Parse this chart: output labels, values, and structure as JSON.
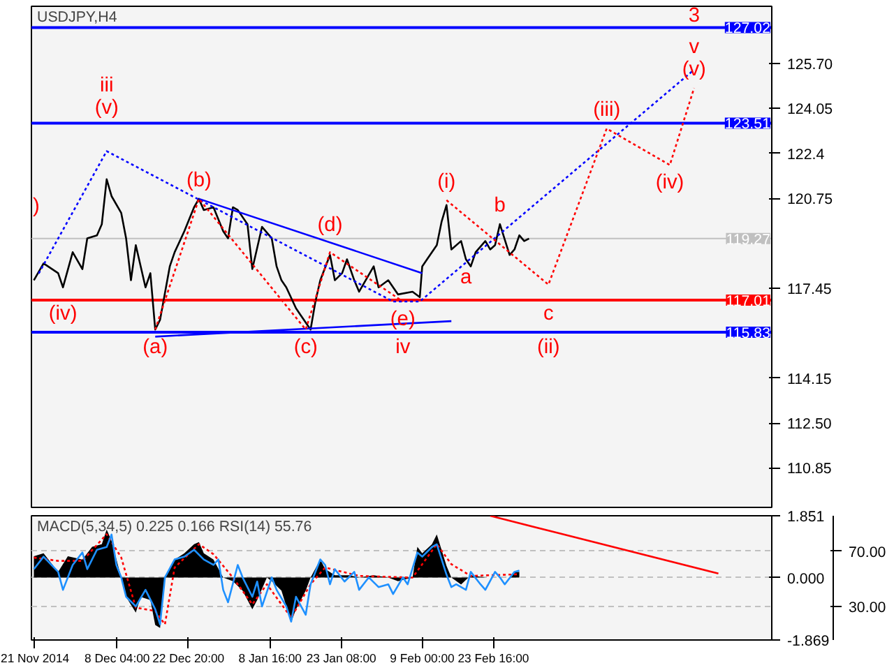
{
  "chart_data": [
    {
      "type": "line",
      "title": "USDJPY,H4",
      "xlim": [
        "2014-11-20T12:00",
        "2015-04-22"
      ],
      "ylim": [
        109.4,
        127.8
      ],
      "tick_labels": "y",
      "grid": false,
      "marker": "none",
      "yticks": [
        110.85,
        {
          "value": 112.5,
          "label": "112.50"
        },
        114.15,
        117.45,
        120.75,
        122.4,
        124.05,
        {
          "value": 125.7,
          "label": "125.70"
        }
      ],
      "series": [
        {
          "color": "#000000",
          "x": [
            "2014-11-21",
            "2014-11-23",
            "2014-11-26",
            "2014-11-27",
            "2014-11-29",
            "2014-12-01",
            "2014-12-02",
            "2014-12-04",
            "2014-12-05",
            "2014-12-06",
            "2014-12-07",
            "2014-12-09",
            "2014-12-10",
            "2014-12-11",
            "2014-12-12",
            "2014-12-14",
            "2014-12-15",
            "2014-12-16",
            "2014-12-17",
            "2014-12-19",
            "2014-12-20",
            "2014-12-22",
            "2014-12-24",
            "2014-12-25",
            "2014-12-26",
            "2014-12-28",
            "2014-12-30",
            "2014-12-31",
            "2015-01-01",
            "2015-01-02",
            "2015-01-04",
            "2015-01-05",
            "2015-01-07",
            "2015-01-09",
            "2015-01-10",
            "2015-01-11",
            "2015-01-12",
            "2015-01-14",
            "2015-01-15",
            "2015-01-17",
            "2015-01-18",
            "2015-01-19",
            "2015-01-21",
            "2015-01-22",
            "2015-01-23T12:00",
            "2015-01-24T12:00",
            "2015-01-26",
            "2015-01-27",
            "2015-01-30",
            "2015-01-31",
            "2015-02-02",
            "2015-02-04",
            "2015-02-07",
            "2015-02-08T12:00",
            "2015-02-09",
            "2015-02-10",
            "2015-02-12",
            "2015-02-13",
            "2015-02-14",
            "2015-02-15",
            "2015-02-17",
            "2015-02-18",
            "2015-02-19",
            "2015-02-20",
            "2015-02-22",
            "2015-02-23",
            "2015-02-24",
            "2015-02-25",
            "2015-02-27",
            "2015-02-28",
            "2015-03-01",
            "2015-03-02",
            "2015-03-03"
          ],
          "values": [
            117.74,
            118.36,
            118.0,
            117.48,
            118.77,
            118.15,
            119.28,
            119.39,
            119.8,
            121.45,
            120.83,
            120.21,
            119.28,
            117.74,
            119.03,
            117.48,
            118.0,
            115.93,
            116.29,
            118.25,
            118.77,
            119.54,
            120.42,
            120.73,
            120.32,
            120.42,
            119.54,
            119.28,
            120.42,
            120.32,
            119.8,
            118.15,
            119.7,
            119.28,
            118.25,
            117.74,
            117.48,
            116.71,
            116.45,
            115.93,
            116.96,
            117.74,
            118.67,
            117.74,
            118.0,
            118.51,
            117.74,
            117.32,
            118.25,
            117.48,
            117.74,
            117.22,
            117.32,
            117.12,
            118.25,
            118.51,
            119.03,
            119.9,
            120.5,
            118.87,
            119.18,
            118.51,
            118.25,
            118.77,
            119.18,
            118.87,
            119.03,
            119.8,
            118.67,
            118.87,
            119.39,
            119.18,
            119.27
          ]
        },
        {
          "color": "#0000ff",
          "line_style": "solid",
          "x": [
            "2014-12-25",
            "2015-02-09"
          ],
          "values": [
            120.73,
            118.0
          ]
        },
        {
          "color": "#0000ff",
          "line_style": "solid",
          "x": [
            "2014-12-16",
            "2015-02-15"
          ],
          "values": [
            115.67,
            116.24
          ]
        },
        {
          "color": "#0000ff",
          "line_style": "dotted",
          "x": [
            "2014-11-22",
            "2014-12-06",
            "2015-02-03",
            "2015-02-08T12:00",
            "2015-04-06"
          ],
          "values": [
            117.99,
            122.48,
            116.96,
            116.96,
            125.47
          ]
        },
        {
          "color": "#ff0000",
          "line_style": "dotted",
          "x": [
            "2014-12-16",
            "2014-12-25",
            "2015-01-16",
            "2015-01-21",
            "2015-02-05"
          ],
          "values": [
            115.93,
            120.73,
            115.93,
            118.77,
            116.96
          ]
        },
        {
          "color": "#ff0000",
          "line_style": "dotted",
          "x": [
            "2015-02-14",
            "2015-03-07",
            "2015-03-19",
            "2015-04-01",
            "2015-04-06"
          ],
          "values": [
            120.68,
            117.58,
            123.31,
            121.97,
            124.8
          ]
        }
      ],
      "ref_lines": [
        {
          "axis": "y",
          "value": 127.02,
          "label": "127.02",
          "color": "#0000ff",
          "line_style": "solid"
        },
        {
          "axis": "y",
          "value": 123.51,
          "label": "123.51",
          "color": "#0000ff",
          "line_style": "solid"
        },
        {
          "axis": "y",
          "value": 119.27,
          "label": "119.27",
          "color": "#c0c0c0",
          "line_style": "solid"
        },
        {
          "axis": "y",
          "value": 117.01,
          "label": "117.01",
          "color": "#ff0000",
          "line_style": "solid"
        },
        {
          "axis": "y",
          "value": 115.83,
          "label": "115.83",
          "color": "#0000ff",
          "line_style": "solid"
        }
      ],
      "annotations": [
        ")",
        {
          "text": "(iv)",
          "x": "2014-11-27",
          "y": 117.48
        },
        {
          "text": "(v)",
          "x": "2014-12-06",
          "y": 122.48
        },
        {
          "text": "iii",
          "x": "2014-12-06",
          "y": 122.48
        },
        {
          "text": "(a)",
          "x": "2014-12-16",
          "y": 115.93
        },
        {
          "text": "(b)",
          "x": "2014-12-25",
          "y": 120.73
        },
        {
          "text": "(c)",
          "x": "2015-01-16",
          "y": 115.93
        },
        {
          "text": "(d)",
          "x": "2015-01-21",
          "y": 118.77
        },
        {
          "text": "(e)",
          "x": "2015-02-05",
          "y": 116.96
        },
        {
          "text": "iv",
          "x": "2015-02-05",
          "y": 116.96
        },
        {
          "text": "(i)",
          "x": "2015-02-14",
          "y": 120.68
        },
        {
          "text": "a",
          "x": "2015-02-18",
          "y": 118.51
        },
        {
          "text": "b",
          "x": "2015-02-25",
          "y": 119.8
        },
        {
          "text": "c",
          "x": "2015-03-07",
          "y": 117.58
        },
        {
          "text": "(ii)",
          "x": "2015-03-07",
          "y": 117.58
        },
        {
          "text": "(iii)",
          "x": "2015-03-19",
          "y": 123.31
        },
        {
          "text": "(iv)",
          "x": "2015-04-01",
          "y": 121.97
        },
        {
          "text": "(v)",
          "x": "2015-04-06",
          "y": 124.8
        },
        {
          "text": "v",
          "x": "2015-04-06",
          "y": 124.8
        },
        {
          "text": "3",
          "x": "2015-04-06",
          "y": 124.8
        }
      ]
    },
    {
      "type": "area",
      "title": "MACD(5,34,5) 0.225 0.166 RSI(14) 55.76",
      "xlim": [
        "2014-11-20T12:00",
        "2015-04-22"
      ],
      "ylim": [
        -1.869,
        1.851
      ],
      "y2lim": [
        5.7,
        95.6
      ],
      "grid": "y",
      "yticks": [
        {
          "value": 1.851,
          "label": "1.851"
        },
        {
          "value": 0,
          "label": "0.000"
        },
        {
          "value": -1.869,
          "label": "-1.869"
        }
      ],
      "y2ticks": [
        {
          "value": 70,
          "label": "70.00"
        },
        {
          "value": 30,
          "label": "30.00"
        }
      ],
      "xticks": [
        {
          "value": "2014-11-21",
          "label": "21 Nov 2014"
        },
        {
          "value": "2014-12-08T04:00",
          "label": "8 Dec 04:00"
        },
        {
          "value": "2014-12-22T20:00",
          "label": "22 Dec 20:00"
        },
        {
          "value": "2015-01-08T16:00",
          "label": "8 Jan 16:00"
        },
        {
          "value": "2015-01-23T08:00",
          "label": "23 Jan 08:00"
        },
        {
          "value": "2015-02-09T00:00",
          "label": "9 Feb 00:00"
        },
        {
          "value": "2015-02-23T16:00",
          "label": "23 Feb 16:00"
        }
      ],
      "series": [
        {
          "color": "#000000",
          "x": [
            "2014-11-21",
            "2014-11-23",
            "2014-11-26",
            "2014-11-28",
            "2014-12-01",
            "2014-12-03",
            "2014-12-05",
            "2014-12-06",
            "2014-12-07",
            "2014-12-09",
            "2014-12-10",
            "2014-12-12",
            "2014-12-13",
            "2014-12-15",
            "2014-12-16",
            "2014-12-17",
            "2014-12-18",
            "2014-12-20",
            "2014-12-22",
            "2014-12-24",
            "2014-12-25",
            "2014-12-26",
            "2014-12-28",
            "2014-12-30",
            "2015-01-01",
            "2015-01-03",
            "2015-01-05",
            "2015-01-06",
            "2015-01-08",
            "2015-01-09",
            "2015-01-11",
            "2015-01-13",
            "2015-01-14",
            "2015-01-16",
            "2015-01-17",
            "2015-01-19",
            "2015-01-20",
            "2015-01-22",
            "2015-01-25",
            "2015-01-27",
            "2015-01-30",
            "2015-02-02",
            "2015-02-04",
            "2015-02-07",
            "2015-02-08",
            "2015-02-09",
            "2015-02-11",
            "2015-02-12",
            "2015-02-14",
            "2015-02-15",
            "2015-02-17",
            "2015-02-19",
            "2015-02-22",
            "2015-02-24",
            "2015-02-27",
            "2015-02-28",
            "2015-03-01"
          ],
          "values": [
            0.64,
            0.73,
            0.17,
            0.64,
            0.54,
            0.92,
            1.0,
            1.44,
            1.1,
            0,
            -0.58,
            -1.05,
            -0.58,
            -0.67,
            -1.42,
            -1.51,
            0,
            0.54,
            0.73,
            1.0,
            1.06,
            0.73,
            0.54,
            0,
            -0.11,
            -0.39,
            -0.95,
            -0.67,
            0,
            -0.11,
            -0.39,
            -1.33,
            -0.95,
            -0.39,
            0,
            0.54,
            0.26,
            0.07,
            0.07,
            0,
            0.07,
            0,
            -0.11,
            0,
            0.92,
            0.73,
            1.0,
            1.29,
            0.35,
            0,
            -0.21,
            0.07,
            0,
            0,
            0,
            0.17,
            0.17
          ]
        },
        {
          "type": "line",
          "color": "#ff0000",
          "line_style": "dotted",
          "x": [
            "2014-11-21",
            "2014-11-26",
            "2014-12-01",
            "2014-12-06",
            "2014-12-09",
            "2014-12-12",
            "2014-12-16",
            "2014-12-18",
            "2014-12-20",
            "2014-12-25",
            "2014-12-28",
            "2015-01-01",
            "2015-01-05",
            "2015-01-08",
            "2015-01-13",
            "2015-01-17",
            "2015-01-20",
            "2015-01-27",
            "2015-02-07",
            "2015-02-12",
            "2015-02-15",
            "2015-02-19",
            "2015-03-01"
          ],
          "values": [
            0.6,
            0.5,
            0.5,
            1.3,
            0.6,
            -0.9,
            -1.0,
            -1.4,
            0.3,
            1.0,
            0.7,
            0,
            -0.8,
            -0.2,
            -1.2,
            -0.2,
            0.3,
            0.05,
            0.0,
            1.0,
            0.4,
            0.05,
            0.1
          ]
        },
        {
          "type": "line",
          "color": "#1e90ff",
          "axis": "y2",
          "line_style": "solid",
          "x": [
            "2014-11-21",
            "2014-11-23",
            "2014-11-26",
            "2014-11-27",
            "2014-11-29",
            "2014-12-01",
            "2014-12-02",
            "2014-12-04",
            "2014-12-06",
            "2014-12-07",
            "2014-12-08",
            "2014-12-09",
            "2014-12-10",
            "2014-12-12",
            "2014-12-14",
            "2014-12-16",
            "2014-12-17",
            "2014-12-18",
            "2014-12-20",
            "2014-12-22",
            "2014-12-24",
            "2014-12-26",
            "2014-12-28",
            "2014-12-29",
            "2014-12-30",
            "2014-12-31",
            "2015-01-02",
            "2015-01-03",
            "2015-01-05",
            "2015-01-06",
            "2015-01-07",
            "2015-01-09",
            "2015-01-10",
            "2015-01-12",
            "2015-01-13",
            "2015-01-14",
            "2015-01-16",
            "2015-01-17",
            "2015-01-19",
            "2015-01-20",
            "2015-01-21",
            "2015-01-22",
            "2015-01-24",
            "2015-01-26",
            "2015-01-27",
            "2015-01-29",
            "2015-01-31",
            "2015-02-02",
            "2015-02-03",
            "2015-02-05",
            "2015-02-06",
            "2015-02-08",
            "2015-02-09",
            "2015-02-11",
            "2015-02-12",
            "2015-02-14",
            "2015-02-15",
            "2015-02-16",
            "2015-02-18",
            "2015-02-19",
            "2015-02-21",
            "2015-02-22",
            "2015-02-24",
            "2015-02-25",
            "2015-02-26",
            "2015-02-28",
            "2015-03-01"
          ],
          "values": [
            57,
            66,
            55,
            42,
            60,
            69,
            57,
            71,
            73,
            82,
            60,
            51,
            37,
            30,
            42,
            28,
            17,
            51,
            64,
            66,
            71,
            64,
            60,
            64,
            42,
            33,
            60,
            51,
            37,
            48,
            30,
            51,
            42,
            30,
            19,
            37,
            24,
            46,
            64,
            60,
            46,
            57,
            48,
            55,
            42,
            51,
            44,
            46,
            39,
            51,
            46,
            69,
            66,
            73,
            75,
            53,
            44,
            46,
            42,
            55,
            46,
            42,
            55,
            51,
            46,
            55,
            56
          ]
        },
        {
          "type": "line",
          "color": "#ff0000",
          "line_style": "solid",
          "x": [
            "2015-02-23",
            "2015-04-11"
          ],
          "values": [
            1.85,
            0.12
          ]
        }
      ]
    }
  ]
}
